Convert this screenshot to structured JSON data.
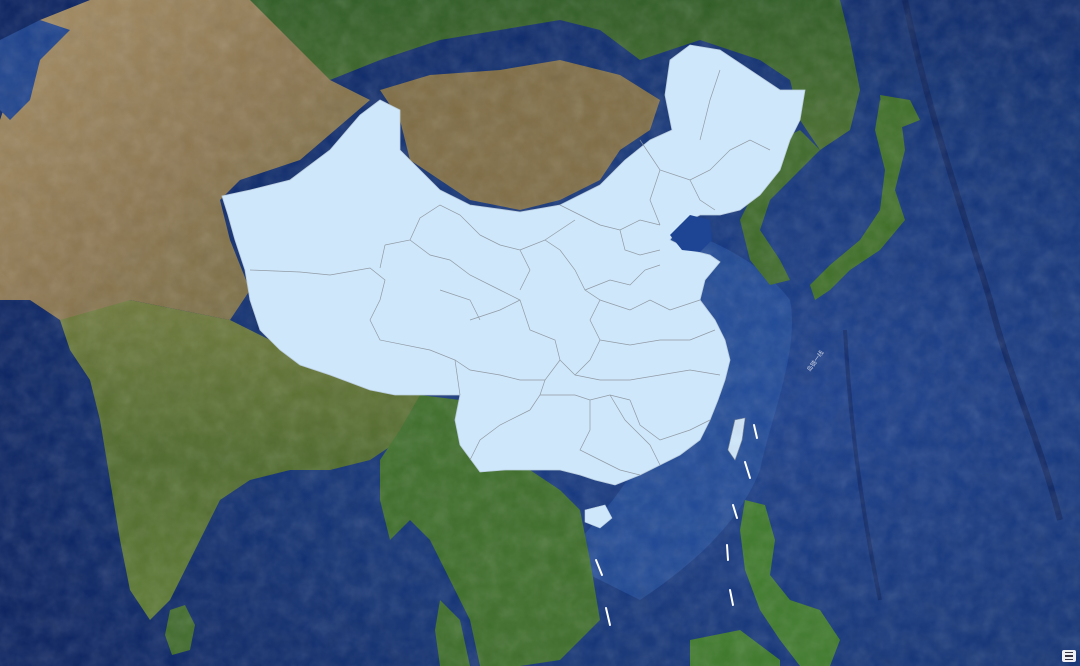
{
  "map": {
    "basemap": "satellite-imagery",
    "colors": {
      "ocean_deep": "#0b2468",
      "ocean_mid": "#1c4392",
      "ocean_shallow": "#2f62b3",
      "land_green": "#3f6e2a",
      "land_forest": "#2f5a22",
      "land_desert": "#a08a62",
      "land_steppe": "#7c6a42",
      "highlight_fill": "#cfe7fb",
      "province_border": "#8a939c",
      "dash_line": "#ffffff"
    },
    "highlighted_region": "China",
    "nine_dash_line": true,
    "island_chain_label": "岛链一线",
    "legend_icon": "map-legend-icon"
  }
}
